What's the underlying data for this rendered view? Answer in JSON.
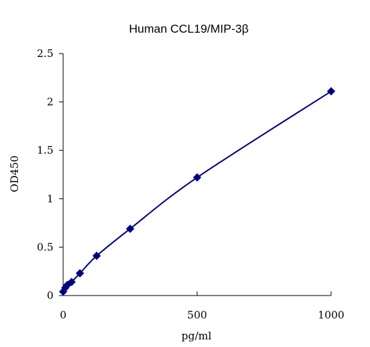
{
  "chart_data": {
    "type": "scatter",
    "title": "Human CCL19/MIP-3β",
    "xlabel": "pg/ml",
    "ylabel": "OD450",
    "xlim": [
      0,
      1000
    ],
    "ylim": [
      0,
      2.5
    ],
    "x_ticks": [
      0,
      500,
      1000
    ],
    "x_tick_labels": [
      "0",
      "500",
      "1000"
    ],
    "y_ticks": [
      0,
      0.5,
      1,
      1.5,
      2,
      2.5
    ],
    "y_tick_labels": [
      "0",
      "0.5",
      "1",
      "1.5",
      "2",
      "2.5"
    ],
    "grid": false,
    "legend": "none",
    "series": [
      {
        "marker": "diamond",
        "line": "smooth",
        "color": "#000080",
        "x": [
          0,
          7.8,
          15.6,
          31.25,
          62.5,
          125,
          250,
          500,
          1000
        ],
        "y": [
          0.04,
          0.08,
          0.11,
          0.14,
          0.23,
          0.41,
          0.69,
          1.22,
          2.11
        ]
      }
    ]
  }
}
